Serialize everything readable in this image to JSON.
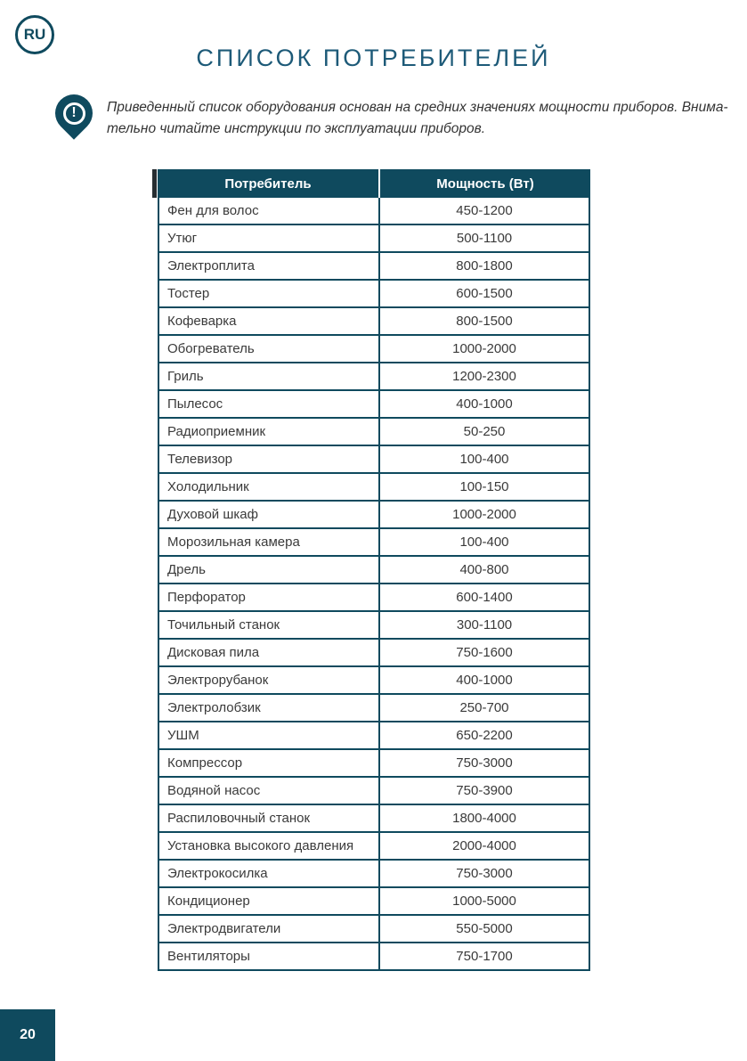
{
  "page": {
    "language_badge": "RU",
    "title": "СПИСОК ПОТРЕБИТЕЛЕЙ",
    "note_line1": "Приведенный список оборудования основан на средних значениях мощности приборов. Внима-",
    "note_line2": "тельно читайте инструкции по эксплуатации приборов.",
    "page_number": "20"
  },
  "icons": {
    "exclamation": "!"
  },
  "colors": {
    "teal_dark": "#0f4a5e",
    "title_blue": "#1d5a78",
    "body_text": "#3a3a3a",
    "white": "#ffffff"
  },
  "table": {
    "headers": [
      "Потребитель",
      "Мощность (Вт)"
    ],
    "rows": [
      [
        "Фен для волос",
        "450-1200"
      ],
      [
        "Утюг",
        "500-1100"
      ],
      [
        "Электроплита",
        "800-1800"
      ],
      [
        "Тостер",
        "600-1500"
      ],
      [
        "Кофеварка",
        "800-1500"
      ],
      [
        "Обогреватель",
        "1000-2000"
      ],
      [
        "Гриль",
        "1200-2300"
      ],
      [
        "Пылесос",
        "400-1000"
      ],
      [
        "Радиоприемник",
        "50-250"
      ],
      [
        "Телевизор",
        "100-400"
      ],
      [
        "Холодильник",
        "100-150"
      ],
      [
        "Духовой шкаф",
        "1000-2000"
      ],
      [
        "Морозильная камера",
        "100-400"
      ],
      [
        "Дрель",
        "400-800"
      ],
      [
        "Перфоратор",
        "600-1400"
      ],
      [
        "Точильный станок",
        "300-1100"
      ],
      [
        "Дисковая пила",
        "750-1600"
      ],
      [
        "Электрорубанок",
        "400-1000"
      ],
      [
        "Электролобзик",
        "250-700"
      ],
      [
        "УШМ",
        "650-2200"
      ],
      [
        "Компрессор",
        "750-3000"
      ],
      [
        "Водяной насос",
        "750-3900"
      ],
      [
        "Распиловочный станок",
        "1800-4000"
      ],
      [
        "Установка высокого давления",
        "2000-4000"
      ],
      [
        "Электрокосилка",
        "750-3000"
      ],
      [
        "Кондиционер",
        "1000-5000"
      ],
      [
        "Электродвигатели",
        "550-5000"
      ],
      [
        "Вентиляторы",
        "750-1700"
      ]
    ]
  }
}
